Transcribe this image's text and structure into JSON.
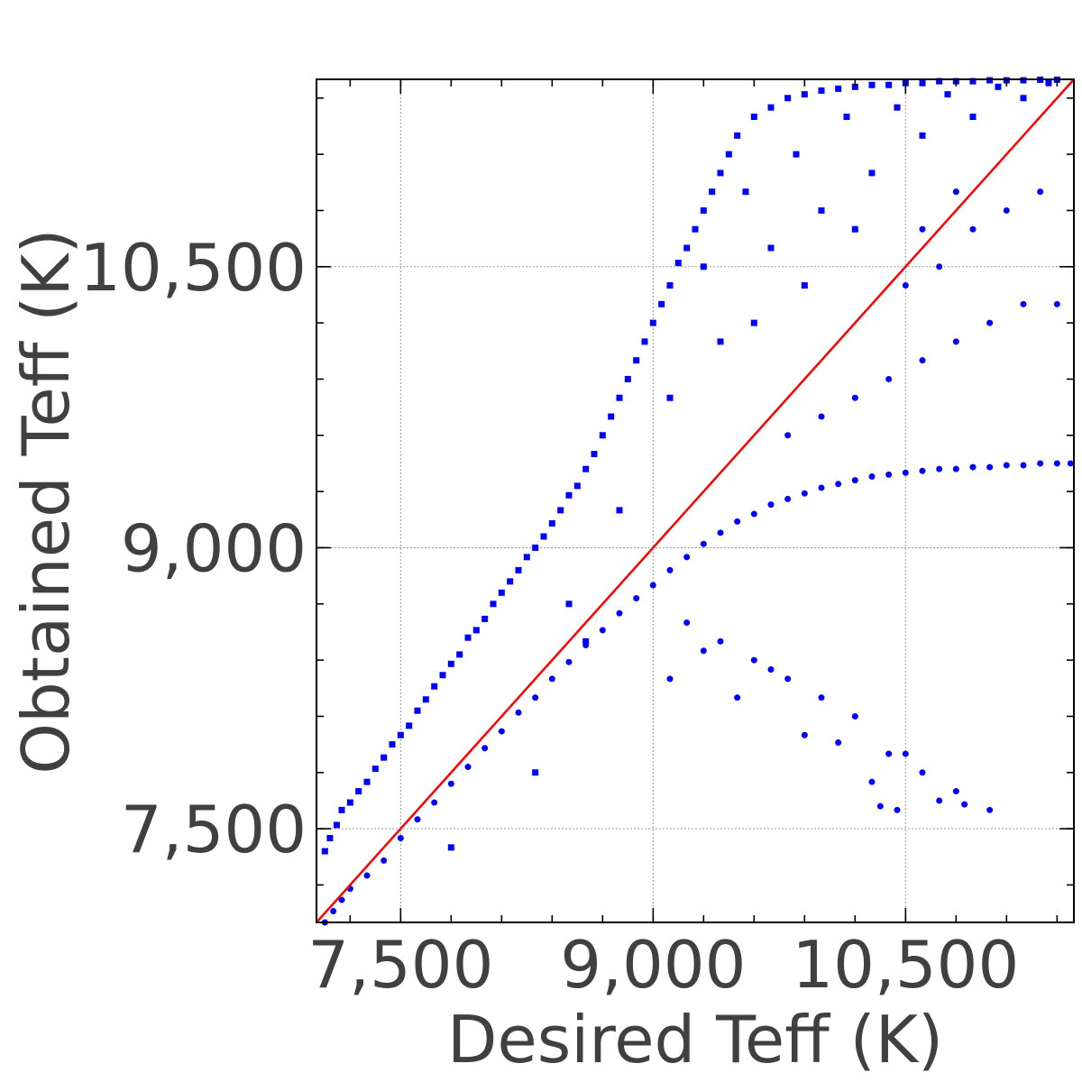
{
  "chart_data": {
    "type": "scatter",
    "title": "",
    "xlabel": "Desired Teff (K)",
    "ylabel": "Obtained Teff (K)",
    "xlim": [
      7000,
      11500
    ],
    "ylim": [
      7000,
      11500
    ],
    "xticks": [
      7500,
      9000,
      10500
    ],
    "yticks": [
      7500,
      9000,
      10500
    ],
    "xtick_labels": [
      "7,500",
      "9,000",
      "10,500"
    ],
    "ytick_labels": [
      "7,500",
      "9,000",
      "10,500"
    ],
    "grid": true,
    "legend": "none",
    "colors": {
      "points": "#0000ff",
      "reference_line": "#ff0000"
    },
    "reference_line": {
      "x": [
        7000,
        11500
      ],
      "y": [
        7000,
        11500
      ]
    },
    "series": [
      {
        "marker": "square",
        "points": [
          [
            7050,
            7380
          ],
          [
            7080,
            7450
          ],
          [
            7120,
            7520
          ],
          [
            7150,
            7600
          ],
          [
            7200,
            7640
          ],
          [
            7250,
            7700
          ],
          [
            7300,
            7750
          ],
          [
            7350,
            7820
          ],
          [
            7400,
            7880
          ],
          [
            7450,
            7950
          ],
          [
            7500,
            8000
          ],
          [
            7550,
            8050
          ],
          [
            7600,
            8130
          ],
          [
            7650,
            8190
          ],
          [
            7700,
            8260
          ],
          [
            7750,
            8320
          ],
          [
            7800,
            8380
          ],
          [
            7850,
            8430
          ],
          [
            7900,
            8520
          ],
          [
            7950,
            8560
          ],
          [
            8000,
            8620
          ],
          [
            8050,
            8700
          ],
          [
            8100,
            8760
          ],
          [
            8150,
            8820
          ],
          [
            8200,
            8880
          ],
          [
            8250,
            8950
          ],
          [
            8300,
            9000
          ],
          [
            8350,
            9060
          ],
          [
            8400,
            9130
          ],
          [
            8450,
            9200
          ],
          [
            8500,
            9280
          ],
          [
            8550,
            9330
          ],
          [
            8600,
            9420
          ],
          [
            8650,
            9500
          ],
          [
            8700,
            9600
          ],
          [
            8750,
            9700
          ],
          [
            8800,
            9800
          ],
          [
            8850,
            9900
          ],
          [
            8900,
            10000
          ],
          [
            8950,
            10100
          ],
          [
            9000,
            10200
          ],
          [
            9050,
            10300
          ],
          [
            9100,
            10400
          ],
          [
            9150,
            10520
          ],
          [
            9200,
            10600
          ],
          [
            9250,
            10700
          ],
          [
            9300,
            10800
          ],
          [
            9350,
            10900
          ],
          [
            9400,
            11000
          ],
          [
            9450,
            11100
          ],
          [
            9500,
            11200
          ],
          [
            9600,
            11300
          ],
          [
            9700,
            11350
          ],
          [
            9800,
            11400
          ],
          [
            9900,
            11420
          ],
          [
            10000,
            11440
          ],
          [
            10100,
            11450
          ],
          [
            10200,
            11460
          ],
          [
            10300,
            11470
          ],
          [
            10400,
            11470
          ],
          [
            10500,
            11480
          ],
          [
            10600,
            11480
          ],
          [
            10700,
            11490
          ],
          [
            10800,
            11490
          ],
          [
            10900,
            11490
          ],
          [
            11000,
            11495
          ],
          [
            11100,
            11495
          ],
          [
            11200,
            11495
          ],
          [
            11300,
            11498
          ],
          [
            11400,
            11498
          ],
          [
            7800,
            7400
          ],
          [
            8300,
            7800
          ],
          [
            8600,
            8500
          ],
          [
            9100,
            9800
          ],
          [
            9400,
            10100
          ],
          [
            9700,
            10600
          ],
          [
            10000,
            10800
          ],
          [
            10300,
            11000
          ],
          [
            10600,
            11200
          ],
          [
            10900,
            11300
          ],
          [
            11200,
            11400
          ],
          [
            9600,
            10200
          ],
          [
            9900,
            10400
          ],
          [
            10200,
            10700
          ],
          [
            8500,
            8700
          ],
          [
            8800,
            9200
          ],
          [
            9300,
            10500
          ],
          [
            9550,
            10900
          ],
          [
            9850,
            11100
          ],
          [
            10150,
            11300
          ],
          [
            10450,
            11350
          ],
          [
            10750,
            11420
          ],
          [
            11050,
            11460
          ],
          [
            11350,
            11480
          ]
        ]
      },
      {
        "marker": "circle",
        "points": [
          [
            7050,
            7000
          ],
          [
            7100,
            7060
          ],
          [
            7150,
            7120
          ],
          [
            7200,
            7180
          ],
          [
            7300,
            7250
          ],
          [
            7400,
            7330
          ],
          [
            7500,
            7450
          ],
          [
            7600,
            7550
          ],
          [
            7700,
            7640
          ],
          [
            7800,
            7740
          ],
          [
            7900,
            7830
          ],
          [
            8000,
            7930
          ],
          [
            8100,
            8020
          ],
          [
            8200,
            8120
          ],
          [
            8300,
            8200
          ],
          [
            8400,
            8300
          ],
          [
            8500,
            8390
          ],
          [
            8600,
            8480
          ],
          [
            8700,
            8560
          ],
          [
            8800,
            8650
          ],
          [
            8900,
            8730
          ],
          [
            9000,
            8800
          ],
          [
            9100,
            8880
          ],
          [
            9200,
            8950
          ],
          [
            9300,
            9020
          ],
          [
            9400,
            9080
          ],
          [
            9500,
            9140
          ],
          [
            9600,
            9180
          ],
          [
            9700,
            9230
          ],
          [
            9800,
            9260
          ],
          [
            9900,
            9290
          ],
          [
            10000,
            9320
          ],
          [
            10100,
            9340
          ],
          [
            10200,
            9360
          ],
          [
            10300,
            9380
          ],
          [
            10400,
            9390
          ],
          [
            10500,
            9400
          ],
          [
            10600,
            9410
          ],
          [
            10700,
            9420
          ],
          [
            10800,
            9420
          ],
          [
            10900,
            9430
          ],
          [
            11000,
            9430
          ],
          [
            11100,
            9440
          ],
          [
            11200,
            9440
          ],
          [
            11300,
            9450
          ],
          [
            11400,
            9450
          ],
          [
            11480,
            9450
          ],
          [
            9200,
            8600
          ],
          [
            9400,
            8500
          ],
          [
            9600,
            8400
          ],
          [
            9800,
            8300
          ],
          [
            10000,
            8200
          ],
          [
            10200,
            8100
          ],
          [
            10400,
            7900
          ],
          [
            10600,
            7800
          ],
          [
            10800,
            7700
          ],
          [
            9100,
            8300
          ],
          [
            9500,
            8200
          ],
          [
            9900,
            8000
          ],
          [
            10300,
            7750
          ],
          [
            10700,
            7650
          ],
          [
            10500,
            7900
          ],
          [
            10100,
            7960
          ],
          [
            9300,
            8450
          ],
          [
            9700,
            8350
          ],
          [
            10450,
            7600
          ],
          [
            10350,
            7620
          ],
          [
            10850,
            7630
          ],
          [
            11000,
            7600
          ],
          [
            9800,
            9600
          ],
          [
            10000,
            9700
          ],
          [
            10200,
            9800
          ],
          [
            10400,
            9900
          ],
          [
            10600,
            10000
          ],
          [
            10800,
            10100
          ],
          [
            11000,
            10200
          ],
          [
            11200,
            10300
          ],
          [
            11400,
            10300
          ],
          [
            10500,
            10400
          ],
          [
            10700,
            10500
          ],
          [
            10900,
            10700
          ],
          [
            11100,
            10800
          ],
          [
            11300,
            10900
          ],
          [
            10600,
            10700
          ],
          [
            10800,
            10900
          ]
        ]
      }
    ]
  }
}
